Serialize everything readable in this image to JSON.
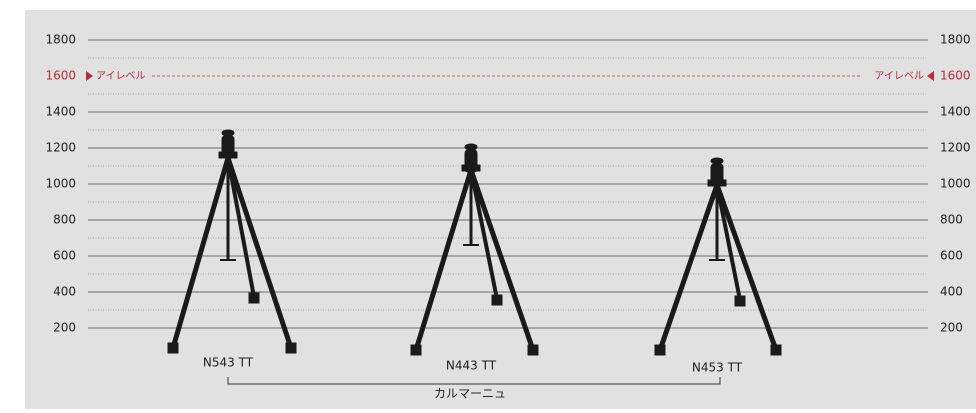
{
  "scale": {
    "ticks": [
      1800,
      1400,
      1200,
      1000,
      800,
      600,
      400,
      200
    ],
    "minor": [
      1700,
      1500,
      1300,
      1100,
      900,
      700,
      500,
      300
    ],
    "eye_level": {
      "value": 1600,
      "label": "アイレベル"
    }
  },
  "tripods": [
    {
      "label": "N543 TT"
    },
    {
      "label": "N443 TT"
    },
    {
      "label": "N453 TT"
    }
  ],
  "group": {
    "label": "カルマーニュ"
  }
}
